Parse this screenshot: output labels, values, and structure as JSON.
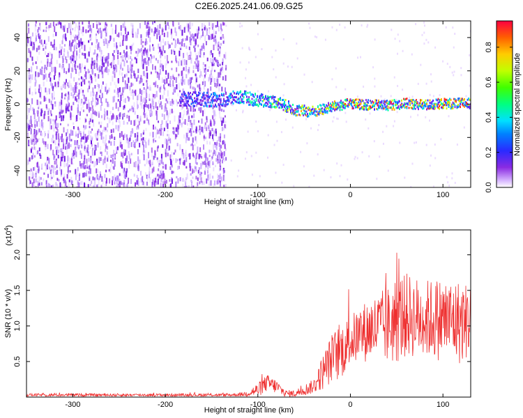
{
  "title": "C2E6.2025.241.06.09.G25",
  "chart_data": [
    {
      "type": "heatmap",
      "title": "C2E6.2025.241.06.09.G25",
      "xlabel": "Height of straight line (km)",
      "ylabel": "Frequency (Hz)",
      "xlim": [
        -350,
        130
      ],
      "ylim": [
        -50,
        50
      ],
      "xticks": [
        -300,
        -200,
        -100,
        0,
        100
      ],
      "xtick_labels": [
        "-300",
        "-200",
        "-100",
        "0",
        "100"
      ],
      "yticks": [
        -40,
        -20,
        0,
        20,
        40
      ],
      "ytick_labels": [
        "-40",
        "-20",
        "0",
        "20",
        "40"
      ],
      "colorbar": {
        "label": "Normalized spectral amplitude",
        "range": [
          0,
          0.95
        ],
        "ticks": [
          0,
          0.2,
          0.4,
          0.6,
          0.8
        ],
        "tick_labels": [
          "0.0",
          "0.2",
          "0.4",
          "0.6",
          "0.8"
        ],
        "colormap": "rainbow"
      },
      "signal_trace": {
        "description": "narrow band of high amplitude near 0 Hz",
        "x": [
          -180,
          -140,
          -120,
          -100,
          -80,
          -60,
          -40,
          -20,
          0,
          20,
          40,
          60,
          80,
          100,
          120,
          130
        ],
        "frequency": [
          4,
          3,
          5,
          3,
          2,
          -3,
          -4,
          -1,
          1,
          0,
          0,
          1,
          0,
          1,
          1,
          1
        ]
      },
      "noise_region_end_x": -135
    },
    {
      "type": "line",
      "xlabel": "Height of straight line (km)",
      "ylabel": "SNR (10 * v/v)",
      "y_multiplier": "(x10",
      "y_multiplier_exp": "4",
      "y_multiplier_close": ")",
      "xlim": [
        -350,
        130
      ],
      "ylim": [
        0,
        2.35
      ],
      "xticks": [
        -300,
        -200,
        -100,
        0,
        100
      ],
      "xtick_labels": [
        "-300",
        "-200",
        "-100",
        "0",
        "100"
      ],
      "yticks": [
        0.5,
        1.0,
        1.5,
        2.0
      ],
      "ytick_labels": [
        "0.5",
        "1.0",
        "1.5",
        "2.0"
      ],
      "series": [
        {
          "name": "SNR",
          "color": "#ee2e2e",
          "envelope_x": [
            -350,
            -300,
            -200,
            -130,
            -115,
            -100,
            -90,
            -80,
            -70,
            -60,
            -50,
            -40,
            -30,
            -20,
            -10,
            0,
            20,
            40,
            50,
            60,
            80,
            100,
            120,
            130
          ],
          "envelope_mean": [
            0.03,
            0.03,
            0.03,
            0.03,
            0.04,
            0.1,
            0.2,
            0.15,
            0.05,
            0.05,
            0.1,
            0.15,
            0.35,
            0.55,
            0.65,
            0.8,
            0.95,
            1.0,
            1.1,
            1.15,
            1.1,
            1.1,
            1.05,
            1.1
          ],
          "envelope_spread": [
            0.02,
            0.02,
            0.02,
            0.02,
            0.03,
            0.1,
            0.12,
            0.1,
            0.05,
            0.05,
            0.08,
            0.1,
            0.25,
            0.35,
            0.4,
            0.35,
            0.45,
            0.55,
            0.65,
            0.6,
            0.55,
            0.6,
            0.6,
            0.5
          ]
        }
      ]
    }
  ]
}
